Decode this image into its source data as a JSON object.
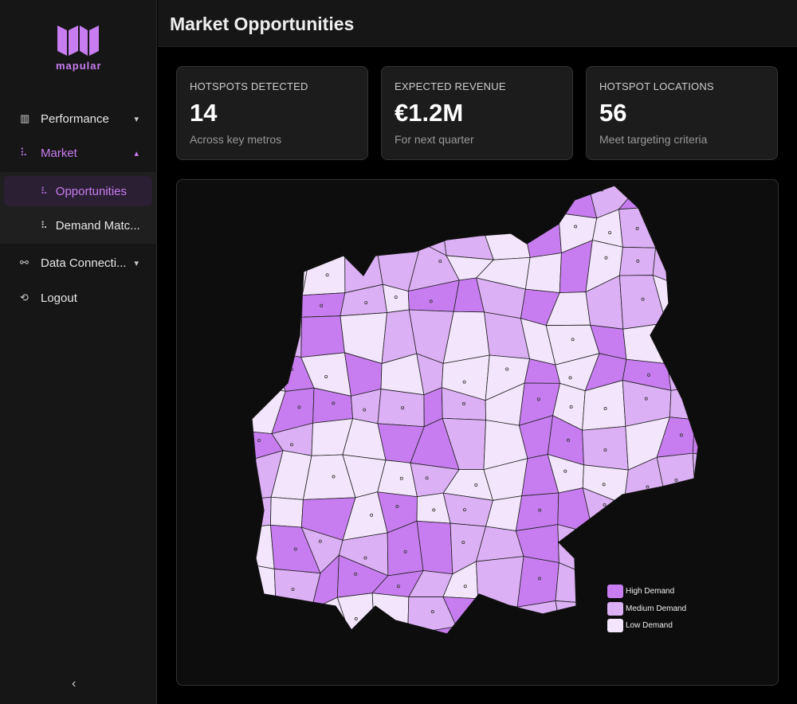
{
  "brand": {
    "name": "mapular",
    "color": "#c77df0"
  },
  "sidebar": {
    "items": [
      {
        "label": "Performance",
        "icon": "bar-chart-icon",
        "chevron": "down"
      },
      {
        "label": "Market",
        "icon": "scatter-chart-icon",
        "chevron": "up"
      },
      {
        "label": "Data Connecti...",
        "icon": "plug-icon",
        "chevron": "down"
      },
      {
        "label": "Logout",
        "icon": "logout-icon"
      }
    ],
    "market_sub": [
      {
        "label": "Opportunities",
        "icon": "scatter-chart-icon"
      },
      {
        "label": "Demand Matc...",
        "icon": "scatter-chart-icon"
      }
    ],
    "collapse_icon": "chevron-left-icon"
  },
  "header": {
    "title": "Market Opportunities"
  },
  "cards": [
    {
      "label": "HOTSPOTS DETECTED",
      "value": "14",
      "sub": "Across key metros"
    },
    {
      "label": "EXPECTED REVENUE",
      "value": "€1.2M",
      "sub": "For next quarter"
    },
    {
      "label": "HOTSPOT LOCATIONS",
      "value": "56",
      "sub": "Meet targeting criteria"
    }
  ],
  "map": {
    "legend": [
      {
        "label": "High Demand",
        "color": "#c77df0"
      },
      {
        "label": "Medium Demand",
        "color": "#dcb0f5"
      },
      {
        "label": "Low Demand",
        "color": "#f3e6fc"
      }
    ]
  }
}
